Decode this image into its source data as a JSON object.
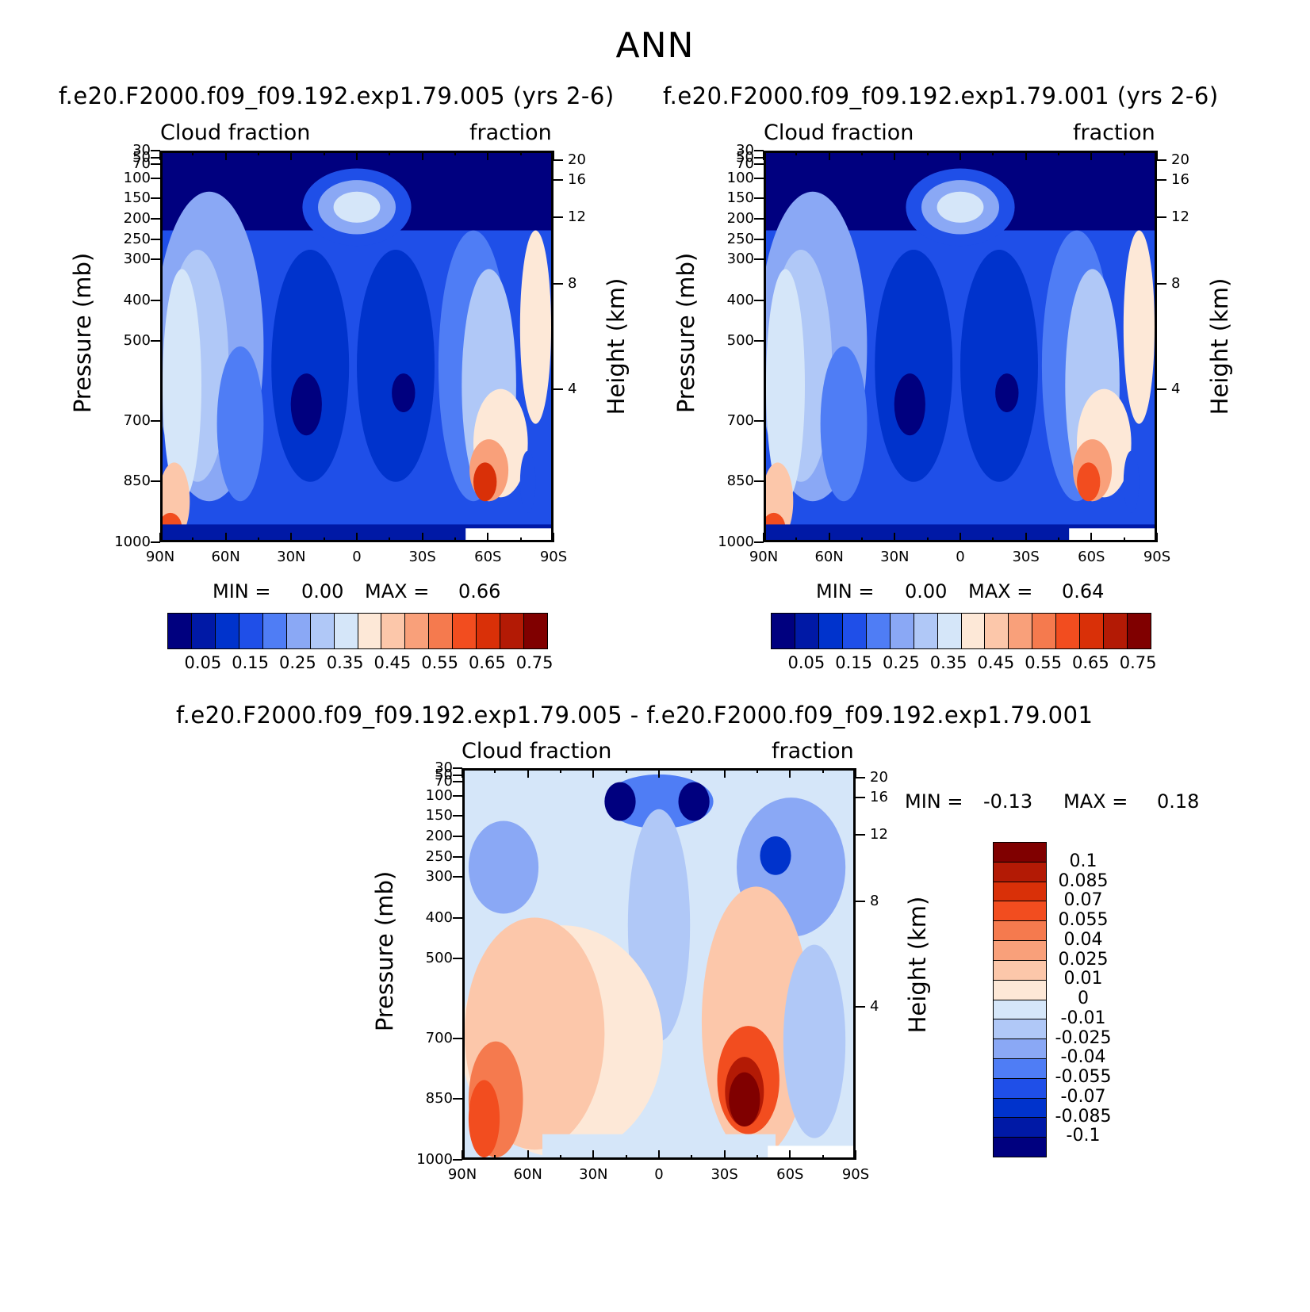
{
  "title": "ANN",
  "colors": {
    "abs_levels": [
      "#00007f",
      "#0019a6",
      "#0033cc",
      "#1f4fe8",
      "#4f7df5",
      "#8aa8f5",
      "#b0c8f7",
      "#d5e6f9",
      "#fde8d7",
      "#fcc7aa",
      "#f9a07a",
      "#f57a4e",
      "#f24d1f",
      "#d93008",
      "#b31a05",
      "#800000"
    ],
    "diff_levels": [
      "#00007f",
      "#0019a6",
      "#0033cc",
      "#1f4fe8",
      "#4f7df5",
      "#8aa8f5",
      "#b0c8f7",
      "#d5e6f9",
      "#fde8d7",
      "#fcc7aa",
      "#f9a07a",
      "#f57a4e",
      "#f24d1f",
      "#d93008",
      "#b31a05",
      "#800000"
    ]
  },
  "chart_data": [
    {
      "type": "heatmap",
      "panel": "top-left",
      "title": "f.e20.F2000.f09_f09.192.exp1.79.005 (yrs 2-6)",
      "left_label": "Cloud fraction",
      "right_label": "fraction",
      "xlabel": "",
      "ylabel": "Pressure (mb)",
      "y2label": "Height (km)",
      "x_ticks": [
        "90N",
        "60N",
        "30N",
        "0",
        "30S",
        "60S",
        "90S"
      ],
      "y_ticks": [
        "30",
        "50",
        "70",
        "100",
        "150",
        "200",
        "250",
        "300",
        "400",
        "500",
        "700",
        "850",
        "1000"
      ],
      "y2_ticks": [
        "20",
        "16",
        "12",
        "8",
        "4"
      ],
      "min_label": "MIN =",
      "min_value": "0.00",
      "max_label": "MAX =",
      "max_value": "0.66",
      "colorbar_labels": [
        "0.05",
        "0.15",
        "0.25",
        "0.35",
        "0.45",
        "0.55",
        "0.65",
        "0.75"
      ]
    },
    {
      "type": "heatmap",
      "panel": "top-right",
      "title": "f.e20.F2000.f09_f09.192.exp1.79.001 (yrs 2-6)",
      "left_label": "Cloud fraction",
      "right_label": "fraction",
      "xlabel": "",
      "ylabel": "Pressure (mb)",
      "y2label": "Height (km)",
      "x_ticks": [
        "90N",
        "60N",
        "30N",
        "0",
        "30S",
        "60S",
        "90S"
      ],
      "y_ticks": [
        "30",
        "50",
        "70",
        "100",
        "150",
        "200",
        "250",
        "300",
        "400",
        "500",
        "700",
        "850",
        "1000"
      ],
      "y2_ticks": [
        "20",
        "16",
        "12",
        "8",
        "4"
      ],
      "min_label": "MIN =",
      "min_value": "0.00",
      "max_label": "MAX =",
      "max_value": "0.64",
      "colorbar_labels": [
        "0.05",
        "0.15",
        "0.25",
        "0.35",
        "0.45",
        "0.55",
        "0.65",
        "0.75"
      ]
    },
    {
      "type": "heatmap",
      "panel": "bottom",
      "title": "f.e20.F2000.f09_f09.192.exp1.79.005 - f.e20.F2000.f09_f09.192.exp1.79.001",
      "left_label": "Cloud fraction",
      "right_label": "fraction",
      "xlabel": "",
      "ylabel": "Pressure (mb)",
      "y2label": "Height (km)",
      "x_ticks": [
        "90N",
        "60N",
        "30N",
        "0",
        "30S",
        "60S",
        "90S"
      ],
      "y_ticks": [
        "30",
        "50",
        "70",
        "100",
        "150",
        "200",
        "250",
        "300",
        "400",
        "500",
        "700",
        "850",
        "1000"
      ],
      "y2_ticks": [
        "20",
        "16",
        "12",
        "8",
        "4"
      ],
      "min_label": "MIN =",
      "min_value": "-0.13",
      "max_label": "MAX =",
      "max_value": "0.18",
      "colorbar_labels": [
        "0.1",
        "0.085",
        "0.07",
        "0.055",
        "0.04",
        "0.025",
        "0.01",
        "0",
        "-0.01",
        "-0.025",
        "-0.04",
        "-0.055",
        "-0.07",
        "-0.085",
        "-0.1"
      ]
    }
  ]
}
